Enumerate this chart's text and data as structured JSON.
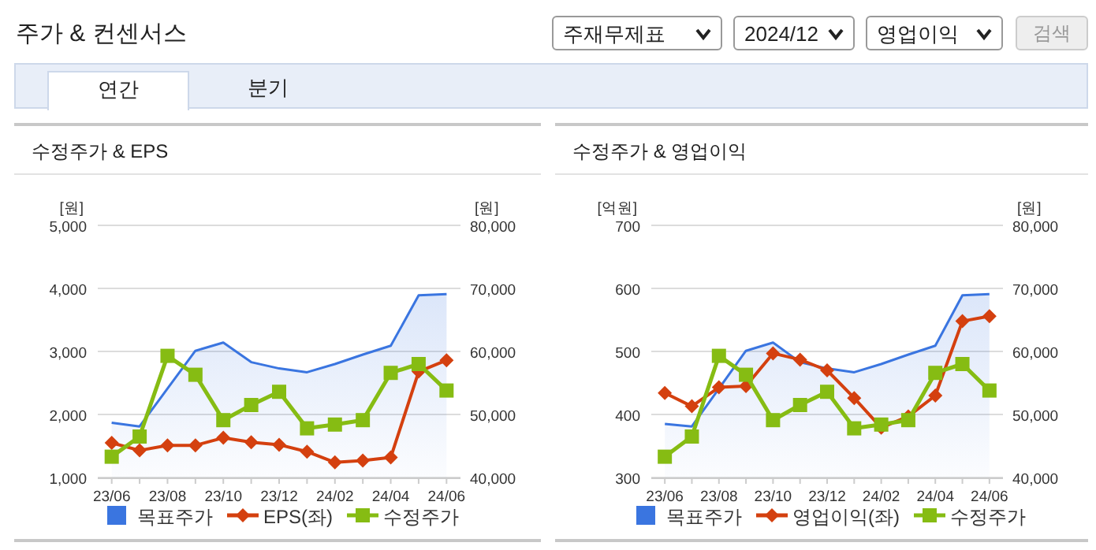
{
  "chart_data": [
    {
      "type": "other",
      "title": "주가 & 컨센서스",
      "annotations": [
        "주재무제표",
        "2024/12",
        "영업이익",
        "검색",
        "연간",
        "분기"
      ]
    },
    {
      "type": "line",
      "title": "수정주가 & EPS",
      "ylabel": "[원]",
      "y2label": "[원]",
      "categories": [
        "23/06",
        null,
        "23/08",
        null,
        "23/10",
        null,
        "23/12",
        null,
        "24/02",
        null,
        "24/04",
        null,
        "24/06"
      ],
      "ylim": [
        1000,
        5000
      ],
      "yticks": [
        {
          "value": 1000,
          "label": "1,000"
        },
        {
          "value": 2000,
          "label": "2,000"
        },
        {
          "value": 3000,
          "label": "3,000"
        },
        {
          "value": 4000,
          "label": "4,000"
        },
        {
          "value": 5000,
          "label": "5,000"
        }
      ],
      "y2lim": [
        40000,
        80000
      ],
      "y2ticks": [
        {
          "value": 40000,
          "label": "40,000"
        },
        {
          "value": 50000,
          "label": "50,000"
        },
        {
          "value": 60000,
          "label": "60,000"
        },
        {
          "value": 70000,
          "label": "70,000"
        },
        {
          "value": 80000,
          "label": "80,000"
        }
      ],
      "grid": "y",
      "legend": "bottom",
      "series": [
        {
          "name": "목표주가",
          "type": "area",
          "axis": "y2",
          "color": "#3a75e0",
          "marker": "none",
          "values": [
            48700,
            48100,
            54100,
            60100,
            61400,
            58300,
            57300,
            56700,
            58000,
            59500,
            60900,
            68900,
            69100
          ]
        },
        {
          "name": "EPS(좌)",
          "type": "line",
          "color": "#d4400f",
          "marker": "diamond",
          "values": [
            1550,
            1430,
            1510,
            1510,
            1630,
            1560,
            1520,
            1410,
            1240,
            1270,
            1320,
            2680,
            2860
          ]
        },
        {
          "name": "수정주가",
          "type": "line",
          "axis": "y2",
          "color": "#86bc13",
          "marker": "square",
          "values": [
            43300,
            46500,
            59300,
            56300,
            49100,
            51500,
            53600,
            47800,
            48400,
            49100,
            56600,
            58000,
            53800
          ]
        }
      ]
    },
    {
      "type": "line",
      "title": "수정주가 & 영업이익",
      "ylabel": "[억원]",
      "y2label": "[원]",
      "categories": [
        "23/06",
        null,
        "23/08",
        null,
        "23/10",
        null,
        "23/12",
        null,
        "24/02",
        null,
        "24/04",
        null,
        "24/06"
      ],
      "ylim": [
        300,
        700
      ],
      "yticks": [
        300,
        400,
        500,
        600,
        700
      ],
      "y2lim": [
        40000,
        80000
      ],
      "y2ticks": [
        {
          "value": 40000,
          "label": "40,000"
        },
        {
          "value": 50000,
          "label": "50,000"
        },
        {
          "value": 60000,
          "label": "60,000"
        },
        {
          "value": 70000,
          "label": "70,000"
        },
        {
          "value": 80000,
          "label": "80,000"
        }
      ],
      "grid": "y",
      "legend": "bottom",
      "series": [
        {
          "name": "목표주가",
          "type": "area",
          "axis": "y2",
          "color": "#3a75e0",
          "marker": "none",
          "values": [
            48500,
            48100,
            54100,
            60100,
            61400,
            58300,
            57300,
            56700,
            58000,
            59500,
            60900,
            68900,
            69100
          ]
        },
        {
          "name": "영업이익(좌)",
          "type": "line",
          "color": "#d4400f",
          "marker": "diamond",
          "values": [
            434,
            413,
            443,
            445,
            497,
            487,
            470,
            426,
            379,
            397,
            430,
            548,
            556
          ]
        },
        {
          "name": "수정주가",
          "type": "line",
          "axis": "y2",
          "color": "#86bc13",
          "marker": "square",
          "values": [
            43300,
            46500,
            59300,
            56300,
            49100,
            51500,
            53600,
            47800,
            48400,
            49100,
            56600,
            58000,
            53800
          ]
        }
      ]
    }
  ]
}
